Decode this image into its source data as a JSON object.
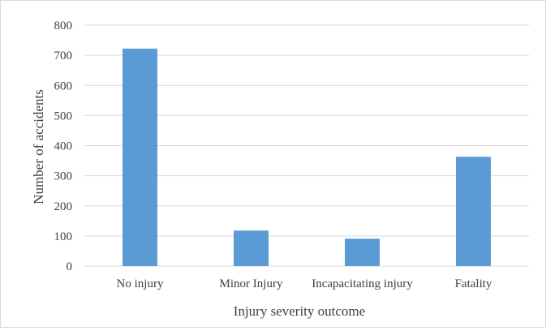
{
  "chart_data": {
    "type": "bar",
    "title": "",
    "categories": [
      "No injury",
      "Minor Injury",
      "Incapacitating injury",
      "Fatality"
    ],
    "values": [
      722,
      118,
      91,
      363
    ],
    "xlabel": "Injury severity outcome",
    "ylabel": "Number of accidents",
    "ylim": [
      0,
      800
    ],
    "yticks": [
      0,
      100,
      200,
      300,
      400,
      500,
      600,
      700,
      800
    ],
    "grid": true,
    "legend": "none",
    "bar_color": "#5b9bd5",
    "grid_color": "#d9d9d9"
  }
}
